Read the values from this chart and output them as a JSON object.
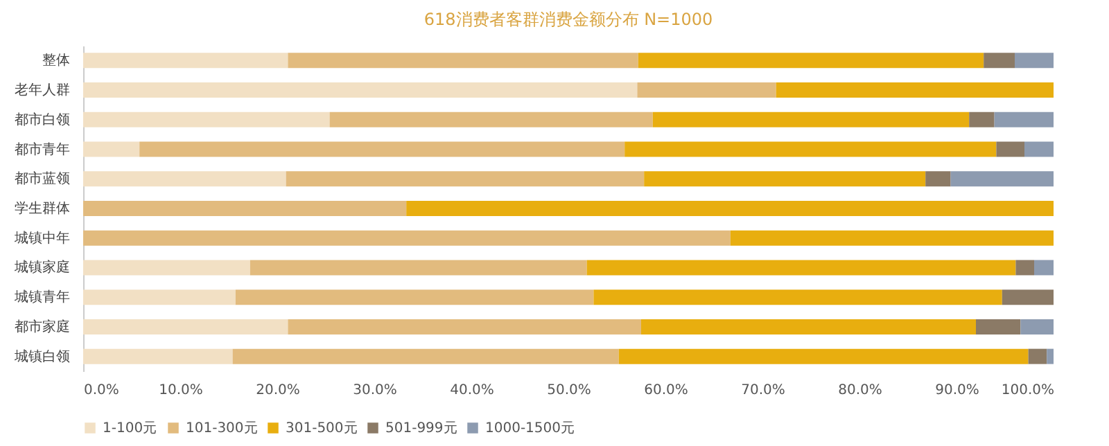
{
  "chart_data": {
    "type": "bar",
    "orientation": "horizontal",
    "stacked": true,
    "title": "618消费者客群消费金额分布 N=1000",
    "categories": [
      "整体",
      "老年人群",
      "都市白领",
      "都市青年",
      "都市蓝领",
      "学生群体",
      "城镇中年",
      "城镇家庭",
      "城镇青年",
      "都市家庭",
      "城镇白领"
    ],
    "series": [
      {
        "name": "1-100元",
        "color": "#f2e0c4",
        "values": [
          21.1,
          57.1,
          25.4,
          5.8,
          20.9,
          0,
          0,
          17.2,
          15.7,
          21.1,
          15.4
        ]
      },
      {
        "name": "101-300元",
        "color": "#e2bb7e",
        "values": [
          36.1,
          14.3,
          33.3,
          50.0,
          36.9,
          33.3,
          66.7,
          34.7,
          36.9,
          36.4,
          39.8
        ]
      },
      {
        "name": "301-500元",
        "color": "#e8ae0f",
        "values": [
          35.6,
          28.6,
          32.6,
          38.3,
          29.0,
          66.7,
          33.3,
          44.2,
          42.1,
          34.5,
          42.2
        ]
      },
      {
        "name": "501-999元",
        "color": "#8b7a66",
        "values": [
          3.2,
          0,
          2.6,
          2.9,
          2.6,
          0,
          0,
          1.9,
          5.3,
          4.6,
          1.9
        ]
      },
      {
        "name": "1000-1500元",
        "color": "#8d9bb0",
        "values": [
          4.0,
          0,
          6.1,
          3.0,
          10.6,
          0,
          0,
          2.0,
          0,
          3.4,
          0.7
        ]
      }
    ],
    "xlim": [
      0,
      100
    ],
    "xticks": [
      {
        "value": 0,
        "label": "0.0%"
      },
      {
        "value": 10,
        "label": "10.0%"
      },
      {
        "value": 20,
        "label": "20.0%"
      },
      {
        "value": 30,
        "label": "30.0%"
      },
      {
        "value": 40,
        "label": "40.0%"
      },
      {
        "value": 50,
        "label": "50.0%"
      },
      {
        "value": 60,
        "label": "60.0%"
      },
      {
        "value": 70,
        "label": "70.0%"
      },
      {
        "value": 80,
        "label": "80.0%"
      },
      {
        "value": 90,
        "label": "90.0%"
      },
      {
        "value": 100,
        "label": "100.0%"
      }
    ],
    "grid": false,
    "legend": "bottom"
  }
}
